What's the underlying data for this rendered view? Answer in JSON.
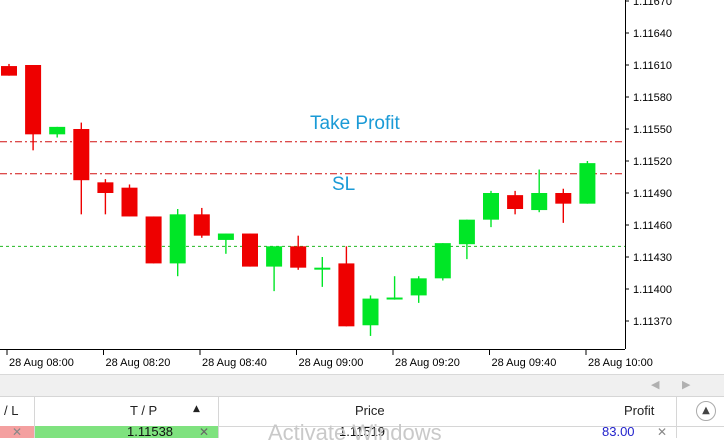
{
  "chart_data": {
    "type": "candlestick",
    "y_ticks": [
      "1.11670",
      "1.11640",
      "1.11610",
      "1.11580",
      "1.11550",
      "1.11520",
      "1.11490",
      "1.11460",
      "1.11430",
      "1.11400",
      "1.11370"
    ],
    "x_ticks": [
      "28 Aug 08:00",
      "28 Aug 08:20",
      "28 Aug 08:40",
      "28 Aug 09:00",
      "28 Aug 09:20",
      "28 Aug 09:40",
      "28 Aug 10:00"
    ],
    "ylim": [
      1.11345,
      1.11675
    ],
    "candles": [
      {
        "o": 1.11609,
        "h": 1.11611,
        "l": 1.116,
        "c": 1.116
      },
      {
        "o": 1.1161,
        "h": 1.1161,
        "l": 1.1153,
        "c": 1.11545
      },
      {
        "o": 1.11545,
        "h": 1.11552,
        "l": 1.11542,
        "c": 1.11552
      },
      {
        "o": 1.1155,
        "h": 1.11556,
        "l": 1.1147,
        "c": 1.11502
      },
      {
        "o": 1.115,
        "h": 1.11503,
        "l": 1.1147,
        "c": 1.1149
      },
      {
        "o": 1.11495,
        "h": 1.11498,
        "l": 1.11468,
        "c": 1.11468
      },
      {
        "o": 1.11468,
        "h": 1.11468,
        "l": 1.11424,
        "c": 1.11424
      },
      {
        "o": 1.11424,
        "h": 1.11475,
        "l": 1.11412,
        "c": 1.1147
      },
      {
        "o": 1.1147,
        "h": 1.11476,
        "l": 1.11448,
        "c": 1.1145
      },
      {
        "o": 1.11446,
        "h": 1.11452,
        "l": 1.11433,
        "c": 1.11452
      },
      {
        "o": 1.11452,
        "h": 1.11452,
        "l": 1.11421,
        "c": 1.11421
      },
      {
        "o": 1.11421,
        "h": 1.1144,
        "l": 1.11398,
        "c": 1.1144
      },
      {
        "o": 1.1144,
        "h": 1.1145,
        "l": 1.11418,
        "c": 1.1142
      },
      {
        "o": 1.1142,
        "h": 1.1143,
        "l": 1.11402,
        "c": 1.1142
      },
      {
        "o": 1.11424,
        "h": 1.1144,
        "l": 1.11365,
        "c": 1.11365
      },
      {
        "o": 1.11366,
        "h": 1.11394,
        "l": 1.11356,
        "c": 1.11391
      },
      {
        "o": 1.11392,
        "h": 1.11412,
        "l": 1.1139,
        "c": 1.11392
      },
      {
        "o": 1.11394,
        "h": 1.11412,
        "l": 1.11387,
        "c": 1.1141
      },
      {
        "o": 1.1141,
        "h": 1.11443,
        "l": 1.11408,
        "c": 1.11443
      },
      {
        "o": 1.11442,
        "h": 1.11465,
        "l": 1.11428,
        "c": 1.11465
      },
      {
        "o": 1.11465,
        "h": 1.11492,
        "l": 1.11458,
        "c": 1.1149
      },
      {
        "o": 1.11488,
        "h": 1.11492,
        "l": 1.1147,
        "c": 1.11475
      },
      {
        "o": 1.11474,
        "h": 1.11512,
        "l": 1.11472,
        "c": 1.1149
      },
      {
        "o": 1.1149,
        "h": 1.11494,
        "l": 1.11462,
        "c": 1.1148
      },
      {
        "o": 1.1148,
        "h": 1.1152,
        "l": 1.1148,
        "c": 1.11518
      }
    ],
    "x_positions_note": "",
    "levels": {
      "take_profit": 1.11538,
      "stop_loss": 1.11508,
      "current": 1.1144
    }
  },
  "chart_labels": {
    "take_profit": "Take Profit",
    "stop_loss": "SL"
  },
  "colors": {
    "bull": "#00e626",
    "bear": "#ee0000",
    "level_line": "#d11111",
    "current_line": "#22b722",
    "label": "#1a9ad6"
  },
  "table": {
    "headers": {
      "sl": "/ L",
      "tp": "T / P",
      "price": "Price",
      "profit": "Profit"
    },
    "row": {
      "tp": "1.11538",
      "price": "1.11519",
      "profit": "83.00"
    }
  },
  "watermark": "Activate Windows"
}
